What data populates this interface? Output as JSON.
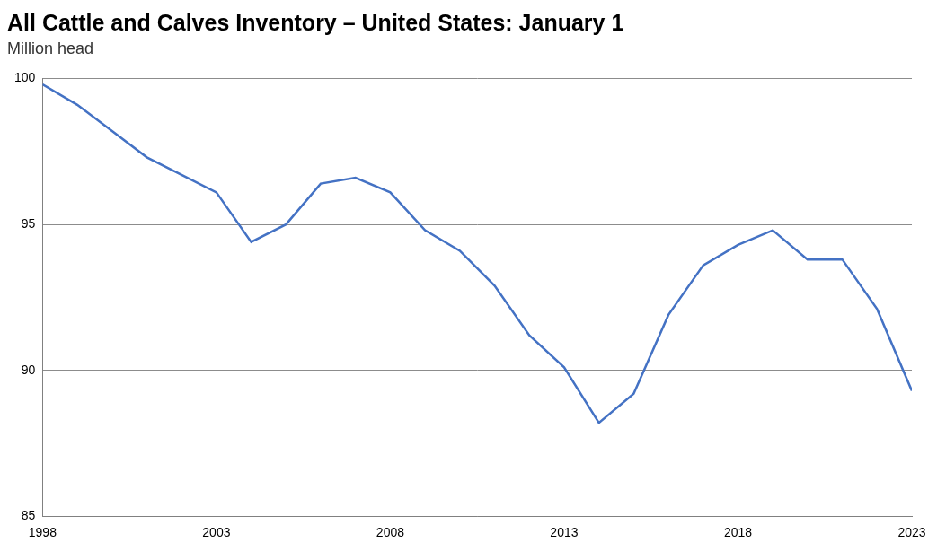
{
  "chart_data": {
    "type": "line",
    "title": "All Cattle and Calves Inventory – United States: January 1",
    "subtitle": "Million head",
    "x": [
      1998,
      1999,
      2000,
      2001,
      2002,
      2003,
      2004,
      2005,
      2006,
      2007,
      2008,
      2009,
      2010,
      2011,
      2012,
      2013,
      2014,
      2015,
      2016,
      2017,
      2018,
      2019,
      2020,
      2021,
      2022,
      2023
    ],
    "values": [
      99.8,
      99.1,
      98.2,
      97.3,
      96.7,
      96.1,
      94.4,
      95.0,
      96.4,
      96.6,
      96.1,
      94.8,
      94.1,
      92.9,
      91.2,
      90.1,
      88.2,
      89.2,
      91.9,
      93.6,
      94.3,
      94.8,
      93.8,
      93.8,
      92.1,
      89.3
    ],
    "color": "#4472c4",
    "xlim": [
      1998,
      2023
    ],
    "xticks": [
      1998,
      2003,
      2008,
      2013,
      2018,
      2023
    ],
    "ylim": [
      85,
      100
    ],
    "yticks": [
      85,
      90,
      95,
      100
    ],
    "grid": true
  }
}
